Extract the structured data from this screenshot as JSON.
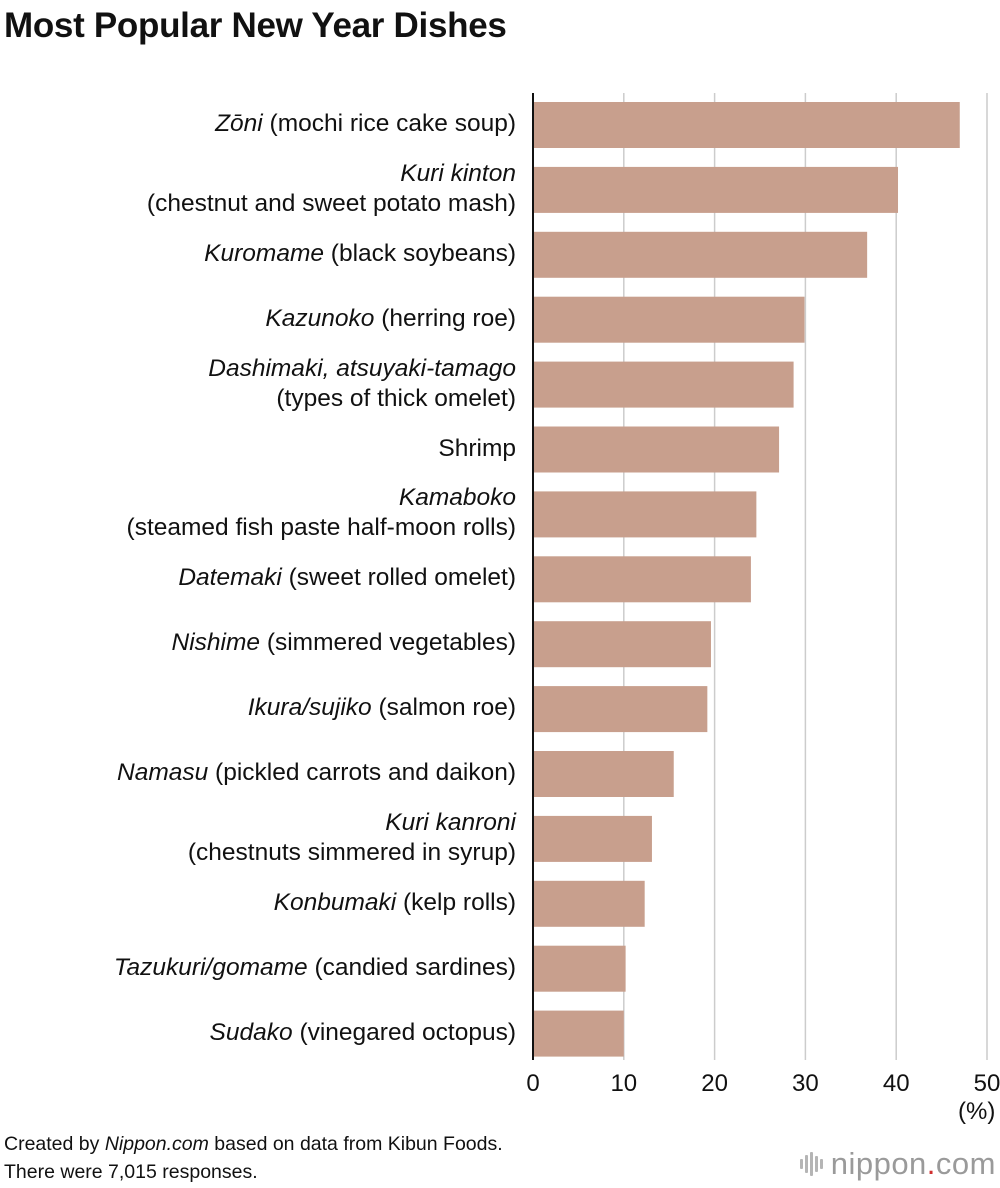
{
  "title": "Most Popular New Year Dishes",
  "unit_label": "(%)",
  "footer": {
    "line1_prefix": "Created by ",
    "line1_brand": "Nippon.com",
    "line1_suffix": " based on data from Kibun Foods.",
    "line2": "There were 7,015 responses."
  },
  "logo": {
    "name": "nippon",
    "dot": ".",
    "tld": "com",
    "mark_icon": "soundwave-icon"
  },
  "colors": {
    "bar": "#c89f8d",
    "grid": "#cccccc",
    "axis": "#111111",
    "logo_dot": "#d03030"
  },
  "chart_data": {
    "type": "bar",
    "orientation": "horizontal",
    "title": "Most Popular New Year Dishes",
    "xlabel": "(%)",
    "ylabel": "",
    "xlim": [
      0,
      50
    ],
    "xticks": [
      0,
      10,
      20,
      30,
      40,
      50
    ],
    "grid": true,
    "categories": [
      {
        "lines": [
          [
            {
              "text": "Zōni",
              "italic": true
            },
            {
              "text": " (mochi rice cake soup)",
              "italic": false
            }
          ]
        ],
        "value": 47.0
      },
      {
        "lines": [
          [
            {
              "text": "Kuri kinton",
              "italic": true
            }
          ],
          [
            {
              "text": "(chestnut and sweet potato mash)",
              "italic": false
            }
          ]
        ],
        "value": 40.2
      },
      {
        "lines": [
          [
            {
              "text": "Kuromame",
              "italic": true
            },
            {
              "text": " (black soybeans)",
              "italic": false
            }
          ]
        ],
        "value": 36.8
      },
      {
        "lines": [
          [
            {
              "text": "Kazunoko",
              "italic": true
            },
            {
              "text": " (herring roe)",
              "italic": false
            }
          ]
        ],
        "value": 29.9
      },
      {
        "lines": [
          [
            {
              "text": "Dashimaki, atsuyaki-tamago",
              "italic": true
            }
          ],
          [
            {
              "text": "(types of thick omelet)",
              "italic": false
            }
          ]
        ],
        "value": 28.7
      },
      {
        "lines": [
          [
            {
              "text": "Shrimp",
              "italic": false
            }
          ]
        ],
        "value": 27.1
      },
      {
        "lines": [
          [
            {
              "text": "Kamaboko",
              "italic": true
            }
          ],
          [
            {
              "text": "(steamed fish paste half-moon rolls)",
              "italic": false
            }
          ]
        ],
        "value": 24.6
      },
      {
        "lines": [
          [
            {
              "text": "Datemaki",
              "italic": true
            },
            {
              "text": " (sweet rolled omelet)",
              "italic": false
            }
          ]
        ],
        "value": 24.0
      },
      {
        "lines": [
          [
            {
              "text": "Nishime",
              "italic": true
            },
            {
              "text": " (simmered vegetables)",
              "italic": false
            }
          ]
        ],
        "value": 19.6
      },
      {
        "lines": [
          [
            {
              "text": "Ikura/sujiko",
              "italic": true
            },
            {
              "text": " (salmon roe)",
              "italic": false
            }
          ]
        ],
        "value": 19.2
      },
      {
        "lines": [
          [
            {
              "text": "Namasu",
              "italic": true
            },
            {
              "text": " (pickled carrots and daikon)",
              "italic": false
            }
          ]
        ],
        "value": 15.5
      },
      {
        "lines": [
          [
            {
              "text": "Kuri kanroni",
              "italic": true
            }
          ],
          [
            {
              "text": "(chestnuts simmered in syrup)",
              "italic": false
            }
          ]
        ],
        "value": 13.1
      },
      {
        "lines": [
          [
            {
              "text": "Konbumaki",
              "italic": true
            },
            {
              "text": " (kelp rolls)",
              "italic": false
            }
          ]
        ],
        "value": 12.3
      },
      {
        "lines": [
          [
            {
              "text": "Tazukuri/gomame",
              "italic": true
            },
            {
              "text": " (candied sardines)",
              "italic": false
            }
          ]
        ],
        "value": 10.2
      },
      {
        "lines": [
          [
            {
              "text": "Sudako",
              "italic": true
            },
            {
              "text": " (vinegared octopus)",
              "italic": false
            }
          ]
        ],
        "value": 10.0
      }
    ]
  }
}
